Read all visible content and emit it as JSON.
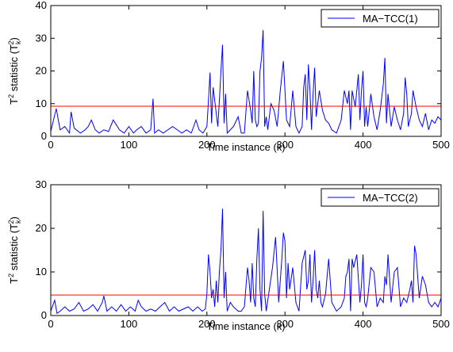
{
  "chart_data": [
    {
      "type": "line",
      "xlabel": "Time instance (k)",
      "ylabel_main": "T",
      "ylabel_sup": "2",
      "ylabel_mid": " statistic (T",
      "ylabel_sub": "k",
      "ylabel_sup2": "2",
      "ylabel_end": ")",
      "xlim": [
        0,
        500
      ],
      "ylim": [
        0,
        40
      ],
      "xticks": [
        "0",
        "100",
        "200",
        "300",
        "400",
        "500"
      ],
      "yticks": [
        "0",
        "10",
        "20",
        "30",
        "40"
      ],
      "legend_position": "top-right",
      "grid": false,
      "series": [
        {
          "name": "MA−TCC(1)",
          "color": "#0000ff",
          "x": [
            0,
            5,
            7,
            12,
            18,
            24,
            26,
            30,
            38,
            44,
            48,
            52,
            57,
            62,
            68,
            74,
            80,
            88,
            94,
            100,
            106,
            110,
            116,
            122,
            128,
            131,
            133,
            138,
            144,
            150,
            156,
            162,
            168,
            174,
            180,
            186,
            190,
            195,
            200,
            202,
            204,
            206,
            208,
            212,
            214,
            216,
            218,
            220,
            222,
            224,
            226,
            230,
            234,
            240,
            244,
            248,
            252,
            256,
            258,
            260,
            262,
            264,
            266,
            268,
            270,
            272,
            274,
            276,
            278,
            282,
            286,
            290,
            294,
            298,
            302,
            306,
            310,
            314,
            318,
            322,
            324,
            326,
            328,
            330,
            332,
            334,
            336,
            338,
            340,
            344,
            348,
            352,
            356,
            360,
            366,
            372,
            376,
            378,
            380,
            382,
            384,
            386,
            390,
            394,
            396,
            398,
            400,
            402,
            404,
            406,
            410,
            414,
            418,
            422,
            426,
            428,
            430,
            432,
            436,
            440,
            444,
            448,
            452,
            454,
            456,
            458,
            460,
            462,
            464,
            468,
            472,
            476,
            480,
            484,
            488,
            492,
            496,
            500
          ],
          "values": [
            1.5,
            6.5,
            8.5,
            2,
            3,
            1,
            7.5,
            2.5,
            1,
            2,
            3,
            5,
            2,
            1,
            2,
            1.5,
            5,
            2,
            1,
            3,
            1,
            2,
            3,
            1,
            2,
            11.5,
            1,
            2,
            1,
            2,
            3,
            2,
            1,
            2,
            1,
            5,
            2,
            1,
            3,
            11,
            19.5,
            4,
            15,
            7,
            3,
            11,
            20,
            28,
            4,
            13,
            1,
            2,
            3,
            6,
            1,
            1,
            14,
            8,
            4,
            20,
            5,
            3,
            4,
            20,
            24,
            32.5,
            3,
            6,
            2,
            10,
            8,
            3,
            14,
            23,
            5,
            3,
            14,
            3,
            1,
            3,
            15,
            19,
            5,
            22,
            14,
            2,
            13,
            21,
            6,
            14,
            8,
            5,
            4,
            2,
            1,
            5,
            14,
            12,
            10,
            14,
            2,
            14,
            9,
            19,
            5,
            14,
            20,
            3,
            9,
            3,
            13,
            6,
            2,
            8,
            16,
            24,
            4,
            13,
            3,
            9,
            5,
            2,
            7,
            18,
            13,
            3,
            5,
            7,
            14,
            9,
            5,
            3,
            7,
            2,
            5,
            4,
            6,
            5
          ],
          "threshold": 9.2,
          "threshold_color": "#ff0000"
        }
      ]
    },
    {
      "type": "line",
      "xlabel": "Time instance (k)",
      "ylabel_main": "T",
      "ylabel_sup": "2",
      "ylabel_mid": " statistic (T",
      "ylabel_sub": "k",
      "ylabel_sup2": "2",
      "ylabel_end": ")",
      "xlim": [
        0,
        500
      ],
      "ylim": [
        0,
        30
      ],
      "xticks": [
        "0",
        "100",
        "200",
        "300",
        "400",
        "500"
      ],
      "yticks": [
        "0",
        "10",
        "20",
        "30"
      ],
      "legend_position": "top-right",
      "grid": false,
      "series": [
        {
          "name": "MA−TCC(2)",
          "color": "#0000ff",
          "x": [
            0,
            5,
            8,
            12,
            18,
            24,
            30,
            36,
            42,
            48,
            54,
            60,
            66,
            68,
            72,
            78,
            84,
            90,
            96,
            102,
            108,
            112,
            116,
            122,
            128,
            134,
            140,
            146,
            152,
            158,
            164,
            170,
            176,
            182,
            188,
            194,
            198,
            200,
            202,
            204,
            206,
            208,
            210,
            212,
            214,
            216,
            218,
            220,
            222,
            224,
            226,
            230,
            234,
            240,
            244,
            248,
            252,
            254,
            256,
            258,
            260,
            262,
            264,
            266,
            268,
            270,
            272,
            274,
            276,
            280,
            284,
            288,
            292,
            296,
            298,
            300,
            302,
            304,
            306,
            310,
            314,
            318,
            322,
            326,
            328,
            330,
            332,
            334,
            336,
            338,
            340,
            342,
            344,
            346,
            348,
            352,
            356,
            360,
            366,
            372,
            376,
            378,
            380,
            382,
            384,
            386,
            388,
            392,
            396,
            398,
            400,
            402,
            404,
            406,
            410,
            414,
            418,
            422,
            426,
            428,
            430,
            432,
            436,
            440,
            444,
            448,
            452,
            456,
            460,
            462,
            464,
            466,
            468,
            472,
            476,
            480,
            484,
            488,
            492,
            496,
            500
          ],
          "values": [
            1,
            3.5,
            0.5,
            1,
            2,
            1,
            1.5,
            3,
            1,
            1.5,
            2.5,
            1,
            3,
            4.5,
            1,
            2,
            1,
            2.5,
            1,
            2,
            1,
            3.5,
            2,
            1,
            1.5,
            1,
            2,
            3,
            1,
            2,
            1,
            1.5,
            2,
            1,
            2,
            1,
            1.5,
            5,
            14,
            10,
            4,
            6,
            2,
            8,
            3,
            10,
            15,
            24.5,
            4,
            10,
            1,
            3,
            2,
            1,
            1,
            2,
            11,
            8,
            3,
            12,
            4,
            2,
            13,
            20,
            6,
            1,
            24,
            5,
            1,
            6,
            11,
            18,
            3,
            13,
            19,
            17,
            4,
            12,
            6,
            11,
            3,
            1,
            12,
            15,
            6,
            8,
            14,
            3,
            8,
            15,
            6,
            4,
            8,
            3,
            2,
            5,
            13,
            3,
            1,
            2,
            4,
            9,
            10,
            13,
            1,
            13,
            11,
            14,
            3,
            7,
            14,
            3,
            2,
            4,
            11,
            10,
            2,
            4,
            3,
            9,
            7,
            14,
            3,
            10,
            11,
            2,
            4,
            3,
            6,
            8,
            3,
            16,
            14,
            4,
            9,
            7,
            3,
            2,
            3,
            2,
            4
          ]
        }
      ],
      "threshold": 4.7,
      "threshold_color": "#ff0000"
    }
  ]
}
